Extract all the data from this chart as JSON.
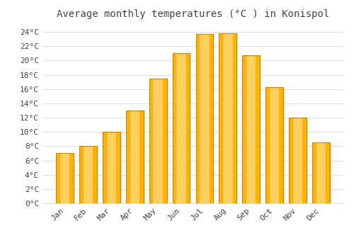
{
  "title": "Average monthly temperatures (°C ) in Konispol",
  "months": [
    "Jan",
    "Feb",
    "Mar",
    "Apr",
    "May",
    "Jun",
    "Jul",
    "Aug",
    "Sep",
    "Oct",
    "Nov",
    "Dec"
  ],
  "temperatures": [
    7,
    8,
    10,
    13,
    17.5,
    21,
    23.7,
    23.8,
    20.7,
    16.3,
    12,
    8.5
  ],
  "bar_color": "#FFAA00",
  "bar_edge_color": "#CC8800",
  "background_color": "#FFFFFF",
  "plot_bg_color": "#FFFFFF",
  "grid_color": "#DDDDDD",
  "text_color": "#444444",
  "ylim": [
    0,
    25
  ],
  "yticks": [
    0,
    2,
    4,
    6,
    8,
    10,
    12,
    14,
    16,
    18,
    20,
    22,
    24
  ],
  "ytick_labels": [
    "0°C",
    "2°C",
    "4°C",
    "6°C",
    "8°C",
    "10°C",
    "12°C",
    "14°C",
    "16°C",
    "18°C",
    "20°C",
    "22°C",
    "24°C"
  ],
  "title_fontsize": 10,
  "tick_fontsize": 8,
  "font_family": "monospace",
  "bar_width": 0.75
}
